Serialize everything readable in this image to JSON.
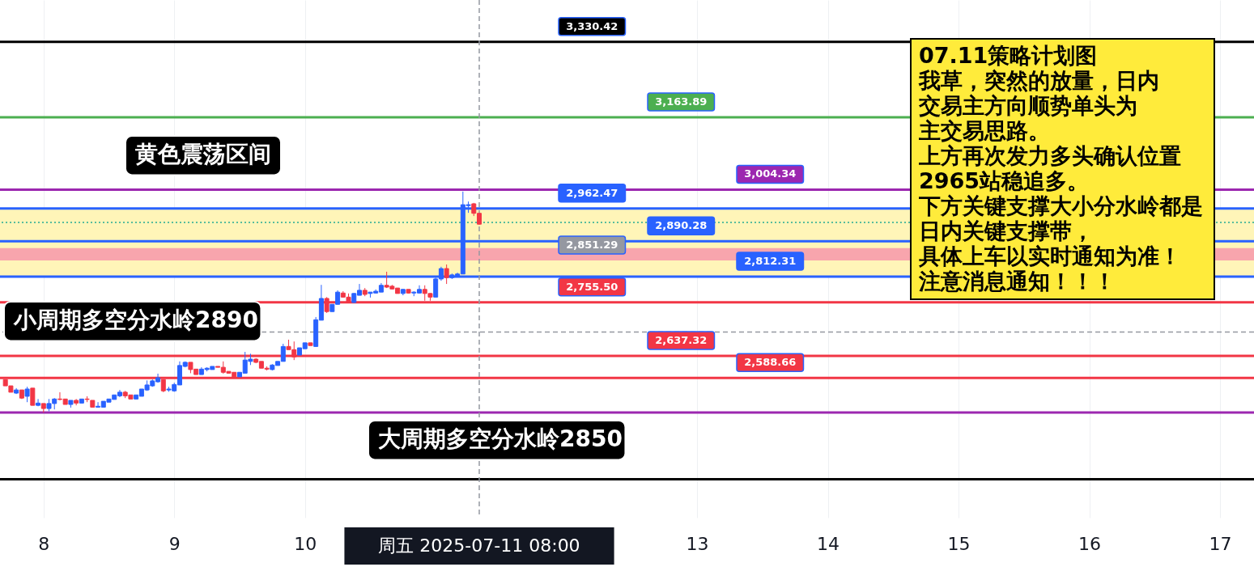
{
  "chart_data": {
    "type": "candlestick",
    "x": [
      "2025-07-07T17:00",
      "2025-07-07T18:00",
      "2025-07-07T19:00",
      "2025-07-07T20:00",
      "2025-07-07T21:00",
      "2025-07-07T22:00",
      "2025-07-07T23:00",
      "2025-07-08T00:00",
      "2025-07-08T01:00",
      "2025-07-08T02:00",
      "2025-07-08T03:00",
      "2025-07-08T04:00",
      "2025-07-08T05:00",
      "2025-07-08T06:00",
      "2025-07-08T07:00",
      "2025-07-08T08:00",
      "2025-07-08T09:00",
      "2025-07-08T10:00",
      "2025-07-08T11:00",
      "2025-07-08T12:00",
      "2025-07-08T13:00",
      "2025-07-08T14:00",
      "2025-07-08T15:00",
      "2025-07-08T16:00",
      "2025-07-08T17:00",
      "2025-07-08T18:00",
      "2025-07-08T19:00",
      "2025-07-08T20:00",
      "2025-07-08T21:00",
      "2025-07-08T22:00",
      "2025-07-08T23:00",
      "2025-07-09T00:00",
      "2025-07-09T01:00",
      "2025-07-09T02:00",
      "2025-07-09T03:00",
      "2025-07-09T04:00",
      "2025-07-09T05:00",
      "2025-07-09T06:00",
      "2025-07-09T07:00",
      "2025-07-09T08:00",
      "2025-07-09T09:00",
      "2025-07-09T10:00",
      "2025-07-09T11:00",
      "2025-07-09T12:00",
      "2025-07-09T13:00",
      "2025-07-09T14:00",
      "2025-07-09T15:00",
      "2025-07-09T16:00",
      "2025-07-09T17:00",
      "2025-07-09T18:00",
      "2025-07-09T19:00",
      "2025-07-09T20:00",
      "2025-07-09T21:00",
      "2025-07-09T22:00",
      "2025-07-09T23:00",
      "2025-07-10T00:00",
      "2025-07-10T01:00",
      "2025-07-10T02:00",
      "2025-07-10T03:00",
      "2025-07-10T04:00",
      "2025-07-10T05:00",
      "2025-07-10T06:00",
      "2025-07-10T07:00",
      "2025-07-10T08:00",
      "2025-07-10T09:00",
      "2025-07-10T10:00",
      "2025-07-10T11:00",
      "2025-07-10T12:00",
      "2025-07-10T13:00",
      "2025-07-10T14:00",
      "2025-07-10T15:00",
      "2025-07-10T16:00",
      "2025-07-10T17:00",
      "2025-07-10T18:00",
      "2025-07-10T19:00",
      "2025-07-10T20:00",
      "2025-07-10T21:00",
      "2025-07-10T22:00",
      "2025-07-10T23:00",
      "2025-07-11T00:00",
      "2025-07-11T01:00",
      "2025-07-11T02:00",
      "2025-07-11T03:00",
      "2025-07-11T04:00",
      "2025-07-11T05:00",
      "2025-07-11T06:00",
      "2025-07-11T07:00",
      "2025-07-11T08:00"
    ],
    "ohlc": [
      [
        2585,
        2585,
        2571,
        2571
      ],
      [
        2571,
        2571,
        2557,
        2557
      ],
      [
        2555,
        2566,
        2553,
        2562
      ],
      [
        2562,
        2562,
        2542,
        2544
      ],
      [
        2548,
        2569,
        2535,
        2564
      ],
      [
        2566,
        2566,
        2528,
        2528
      ],
      [
        2528,
        2542,
        2526,
        2533
      ],
      [
        2532,
        2532,
        2512,
        2521
      ],
      [
        2521,
        2542,
        2515,
        2532
      ],
      [
        2532,
        2544,
        2519,
        2542
      ],
      [
        2542,
        2557,
        2539,
        2541
      ],
      [
        2542,
        2542,
        2530,
        2530
      ],
      [
        2530,
        2539,
        2523,
        2539
      ],
      [
        2539,
        2542,
        2528,
        2533
      ],
      [
        2533,
        2542,
        2533,
        2542
      ],
      [
        2542,
        2548,
        2535,
        2541
      ],
      [
        2539,
        2539,
        2524,
        2524
      ],
      [
        2524,
        2535,
        2523,
        2526
      ],
      [
        2524,
        2537,
        2524,
        2537
      ],
      [
        2535,
        2542,
        2535,
        2542
      ],
      [
        2541,
        2551,
        2541,
        2551
      ],
      [
        2549,
        2562,
        2546,
        2557
      ],
      [
        2557,
        2560,
        2544,
        2549
      ],
      [
        2551,
        2551,
        2542,
        2542
      ],
      [
        2542,
        2551,
        2542,
        2551
      ],
      [
        2548,
        2564,
        2548,
        2564
      ],
      [
        2562,
        2583,
        2560,
        2573
      ],
      [
        2571,
        2585,
        2569,
        2582
      ],
      [
        2580,
        2598,
        2578,
        2589
      ],
      [
        2585,
        2585,
        2557,
        2560
      ],
      [
        2562,
        2569,
        2558,
        2564
      ],
      [
        2560,
        2578,
        2558,
        2574
      ],
      [
        2573,
        2625,
        2573,
        2616
      ],
      [
        2614,
        2625,
        2612,
        2623
      ],
      [
        2623,
        2623,
        2599,
        2607
      ],
      [
        2608,
        2608,
        2596,
        2596
      ],
      [
        2596,
        2612,
        2596,
        2608
      ],
      [
        2607,
        2612,
        2603,
        2610
      ],
      [
        2607,
        2614,
        2607,
        2614
      ],
      [
        2614,
        2614,
        2612,
        2612
      ],
      [
        2612,
        2625,
        2598,
        2601
      ],
      [
        2603,
        2603,
        2599,
        2599
      ],
      [
        2601,
        2601,
        2591,
        2591
      ],
      [
        2591,
        2601,
        2591,
        2601
      ],
      [
        2599,
        2646,
        2599,
        2628
      ],
      [
        2625,
        2642,
        2617,
        2630
      ],
      [
        2630,
        2632,
        2621,
        2623
      ],
      [
        2625,
        2625,
        2610,
        2610
      ],
      [
        2610,
        2614,
        2605,
        2608
      ],
      [
        2607,
        2619,
        2605,
        2617
      ],
      [
        2616,
        2625,
        2616,
        2625
      ],
      [
        2625,
        2664,
        2625,
        2658
      ],
      [
        2658,
        2673,
        2651,
        2651
      ],
      [
        2651,
        2669,
        2628,
        2635
      ],
      [
        2639,
        2655,
        2639,
        2655
      ],
      [
        2653,
        2666,
        2653,
        2666
      ],
      [
        2666,
        2666,
        2660,
        2660
      ],
      [
        2658,
        2723,
        2658,
        2717
      ],
      [
        2716,
        2794,
        2716,
        2764
      ],
      [
        2764,
        2767,
        2732,
        2735
      ],
      [
        2735,
        2751,
        2735,
        2751
      ],
      [
        2751,
        2782,
        2751,
        2778
      ],
      [
        2776,
        2780,
        2766,
        2767
      ],
      [
        2767,
        2775,
        2755,
        2755
      ],
      [
        2755,
        2776,
        2755,
        2775
      ],
      [
        2771,
        2796,
        2771,
        2782
      ],
      [
        2782,
        2787,
        2769,
        2773
      ],
      [
        2775,
        2778,
        2766,
        2778
      ],
      [
        2776,
        2784,
        2775,
        2780
      ],
      [
        2778,
        2798,
        2778,
        2793
      ],
      [
        2793,
        2823,
        2787,
        2789
      ],
      [
        2791,
        2794,
        2784,
        2785
      ],
      [
        2787,
        2787,
        2775,
        2775
      ],
      [
        2775,
        2785,
        2771,
        2784
      ],
      [
        2784,
        2784,
        2775,
        2776
      ],
      [
        2776,
        2780,
        2769,
        2778
      ],
      [
        2776,
        2793,
        2775,
        2784
      ],
      [
        2784,
        2793,
        2759,
        2775
      ],
      [
        2775,
        2776,
        2759,
        2767
      ],
      [
        2767,
        2810,
        2767,
        2807
      ],
      [
        2807,
        2834,
        2803,
        2830
      ],
      [
        2830,
        2839,
        2796,
        2810
      ],
      [
        2810,
        2819,
        2807,
        2816
      ],
      [
        2814,
        2821,
        2812,
        2818
      ],
      [
        2818,
        3000,
        2818,
        2971
      ],
      [
        2969,
        2978,
        2953,
        2971
      ],
      [
        2973,
        2975,
        2946,
        2952
      ],
      [
        2952,
        2952,
        2927,
        2928
      ]
    ],
    "colors": [
      "#f23645",
      "#f23645",
      "#2962ff",
      "#f23645",
      "#2962ff",
      "#f23645",
      "#2962ff",
      "#f23645",
      "#2962ff",
      "#2962ff",
      "#f23645",
      "#f23645",
      "#2962ff",
      "#f23645",
      "#2962ff",
      "#f23645",
      "#f23645",
      "#2962ff",
      "#2962ff",
      "#2962ff",
      "#2962ff",
      "#2962ff",
      "#f23645",
      "#f23645",
      "#2962ff",
      "#2962ff",
      "#2962ff",
      "#2962ff",
      "#2962ff",
      "#f23645",
      "#2962ff",
      "#2962ff",
      "#2962ff",
      "#2962ff",
      "#f23645",
      "#f23645",
      "#2962ff",
      "#2962ff",
      "#2962ff",
      "#f23645",
      "#f23645",
      "#f23645",
      "#f23645",
      "#2962ff",
      "#2962ff",
      "#2962ff",
      "#f23645",
      "#f23645",
      "#f23645",
      "#2962ff",
      "#2962ff",
      "#2962ff",
      "#f23645",
      "#f23645",
      "#2962ff",
      "#2962ff",
      "#f23645",
      "#2962ff",
      "#2962ff",
      "#f23645",
      "#2962ff",
      "#2962ff",
      "#f23645",
      "#f23645",
      "#2962ff",
      "#2962ff",
      "#f23645",
      "#2962ff",
      "#2962ff",
      "#2962ff",
      "#f23645",
      "#f23645",
      "#f23645",
      "#2962ff",
      "#f23645",
      "#2962ff",
      "#2962ff",
      "#f23645",
      "#f23645",
      "#2962ff",
      "#2962ff",
      "#f23645",
      "#2962ff",
      "#2962ff",
      "#2962ff",
      "#2962ff",
      "#f23645",
      "#f23645"
    ],
    "xlim": [
      "2025-07-07T16:45",
      "2025-07-17T05:30"
    ],
    "xticks": [
      {
        "value": "2025-07-08",
        "label": "8"
      },
      {
        "value": "2025-07-09",
        "label": "9"
      },
      {
        "value": "2025-07-10",
        "label": "10"
      },
      {
        "value": "2025-07-13",
        "label": "13"
      },
      {
        "value": "2025-07-14",
        "label": "14"
      },
      {
        "value": "2025-07-15",
        "label": "15"
      },
      {
        "value": "2025-07-16",
        "label": "16"
      },
      {
        "value": "2025-07-17",
        "label": "17"
      }
    ],
    "ylim": [
      2280,
      3423
    ],
    "tick_labels": "x",
    "grid": "x",
    "bands": [
      {
        "axis": "y",
        "from": 2812.31,
        "to": 2962.47,
        "color": "#fff5b8"
      },
      {
        "axis": "y",
        "from": 2848,
        "to": 2875,
        "color": "#f8a5ad",
        "label": "2,851.29"
      }
    ],
    "ref_lines": [
      {
        "axis": "y",
        "value": 3330.42,
        "label": "3,330.42",
        "color": "#000000",
        "line_style": "solid"
      },
      {
        "axis": "y",
        "value": 3163.89,
        "label": "3,163.89",
        "color": "#4caf50",
        "line_style": "solid"
      },
      {
        "axis": "y",
        "value": 3004.34,
        "label": "3,004.34",
        "color": "#9c27b0",
        "line_style": "solid"
      },
      {
        "axis": "y",
        "value": 2962.47,
        "label": "2,962.47",
        "color": "#2962ff",
        "line_style": "solid"
      },
      {
        "axis": "y",
        "value": 2932,
        "color": "#22ab94",
        "line_style": "dotted"
      },
      {
        "axis": "y",
        "value": 2890.28,
        "label": "2,890.28",
        "color": "#2962ff",
        "line_style": "solid"
      },
      {
        "axis": "y",
        "value": 2812.31,
        "label": "2,812.31",
        "color": "#2962ff",
        "line_style": "solid"
      },
      {
        "axis": "y",
        "value": 2755.5,
        "label": "2,755.50",
        "color": "#f23645",
        "line_style": "solid"
      },
      {
        "axis": "y",
        "value": 2690,
        "color": "#9598a1",
        "line_style": "dashed"
      },
      {
        "axis": "y",
        "value": 2637.32,
        "label": "2,637.32",
        "color": "#f23645",
        "line_style": "solid"
      },
      {
        "axis": "y",
        "value": 2588.66,
        "label": "2,588.66",
        "color": "#f23645",
        "line_style": "solid"
      },
      {
        "axis": "y",
        "value": 2512,
        "color": "#9c27b0",
        "line_style": "solid"
      },
      {
        "axis": "y",
        "value": 2365,
        "color": "#000000",
        "line_style": "solid"
      },
      {
        "axis": "x",
        "value": "2025-07-11T08:00",
        "label": "周五 2025-07-11   08:00",
        "color": "#9598a1",
        "line_style": "dashed"
      }
    ],
    "annotations": [
      "黄色震荡区间",
      "小周期多空分水岭2890",
      "大周期多空分水岭2850",
      "07.11策略计划图",
      "我草，突然的放量，日内",
      "交易主方向顺势单头为",
      "主交易思路。",
      "上方再次发力多头确认位置",
      "2965站稳追多。",
      "下方关键支撑大小分水岭都是",
      "日内关键支撑带，",
      "具体上车以实时通知为准！",
      "注意消息通知！！！"
    ]
  }
}
